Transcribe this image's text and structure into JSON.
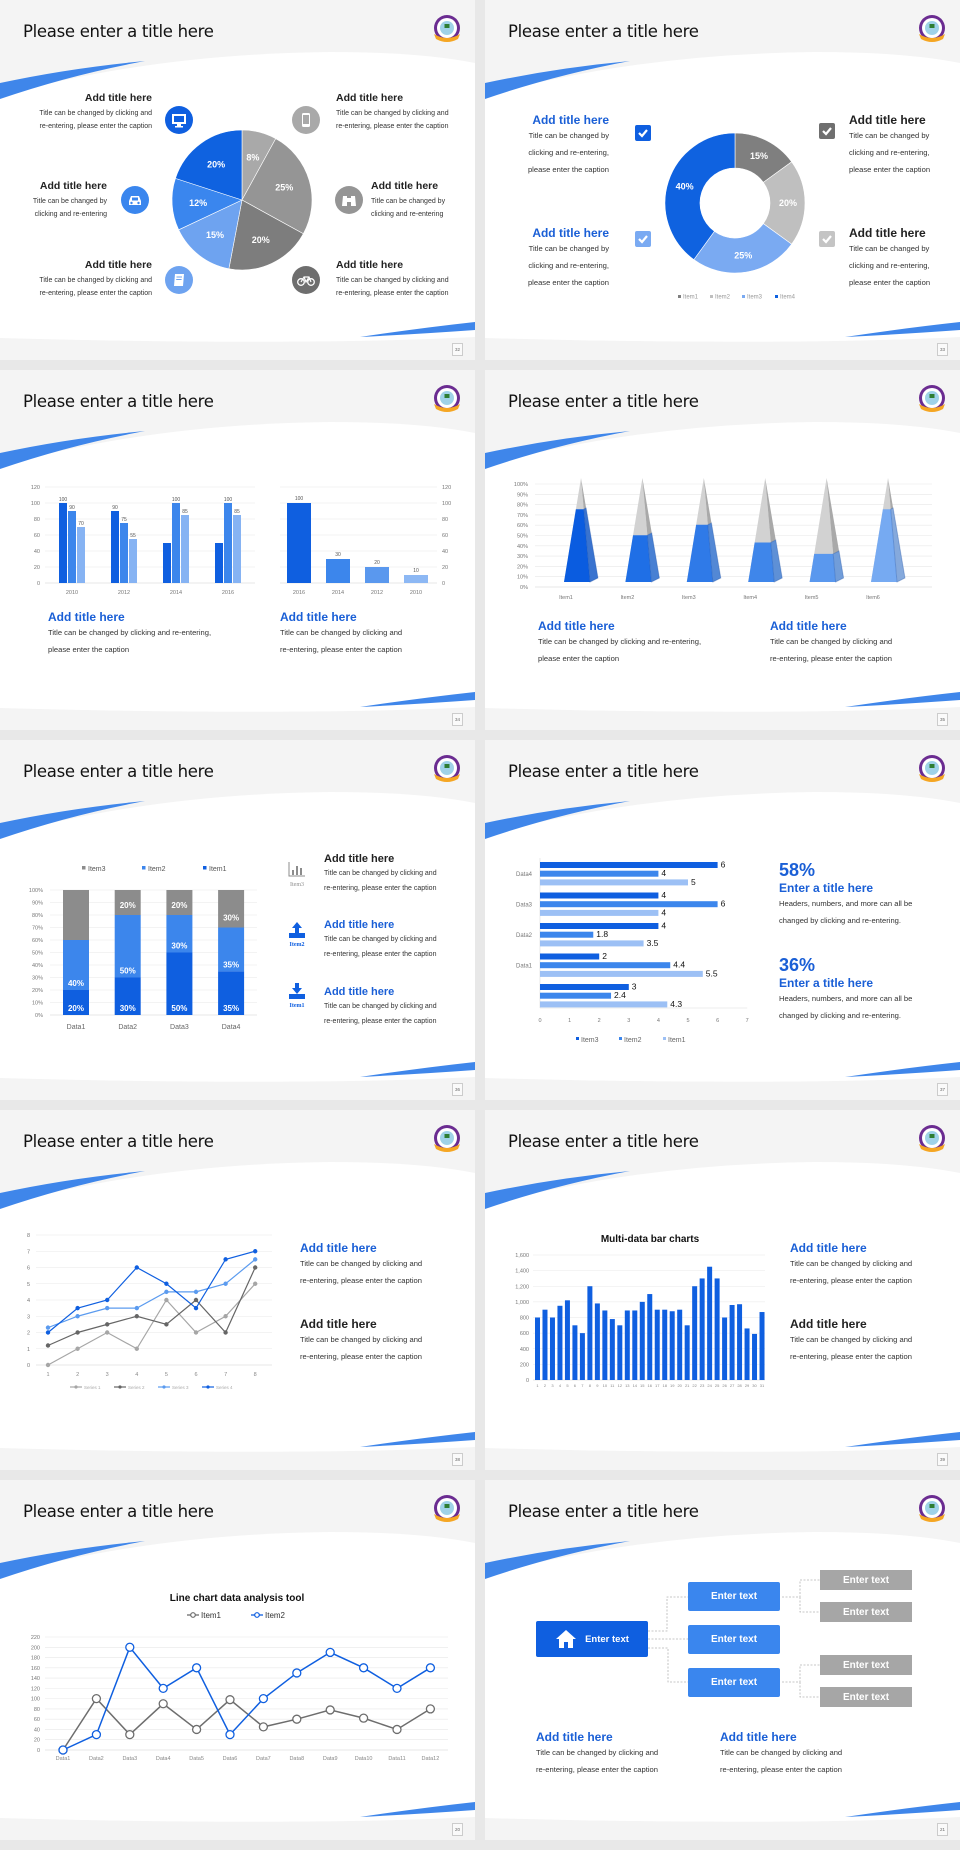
{
  "colors": {
    "blue_dark": "#0f5fe0",
    "blue_mid": "#3c86ec",
    "blue_light": "#7badf2",
    "gray_dark": "#7f7f7f",
    "gray_mid": "#a6a6a6",
    "gray_light": "#bfbfbf",
    "background": "#f4f4f4"
  },
  "slides": [
    {
      "title": "Please enter a title here",
      "page": "32",
      "blocks": [
        {
          "title": "Add title here",
          "lines": [
            "Title can be changed by clicking and",
            "re-entering, please enter the caption"
          ],
          "icon": "monitor-icon"
        },
        {
          "title": "Add title here",
          "lines": [
            "Title can be changed by",
            "clicking and re-entering"
          ],
          "icon": "car-icon"
        },
        {
          "title": "Add title here",
          "lines": [
            "Title can be changed by clicking and",
            "re-entering, please enter the caption"
          ],
          "icon": "book-icon"
        },
        {
          "title": "Add title here",
          "lines": [
            "Title can be changed by clicking and",
            "re-entering, please enter the caption"
          ],
          "icon": "phone-icon"
        },
        {
          "title": "Add title here",
          "lines": [
            "Title can be changed by",
            "clicking and re-entering"
          ],
          "icon": "binoculars-icon"
        },
        {
          "title": "Add title here",
          "lines": [
            "Title can be changed by clicking and",
            "re-entering, please enter the caption"
          ],
          "icon": "bicycle-icon"
        }
      ]
    },
    {
      "title": "Please enter a title here",
      "page": "33",
      "blocks": [
        {
          "title": "Add title here",
          "lines": [
            "Title can be changed by",
            "clicking and re-entering,",
            "please enter the caption"
          ]
        },
        {
          "title": "Add title here",
          "lines": [
            "Title can be changed by",
            "clicking and re-entering,",
            "please enter the caption"
          ]
        },
        {
          "title": "Add title here",
          "lines": [
            "Title can be changed by",
            "clicking and re-entering,",
            "please enter the caption"
          ]
        },
        {
          "title": "Add title here",
          "lines": [
            "Title can be changed by",
            "clicking and re-entering,",
            "please enter the caption"
          ]
        }
      ]
    },
    {
      "title": "Please enter a title here",
      "page": "34",
      "blocks": [
        {
          "title": "Add title here",
          "lines": [
            "Title can be changed by clicking and re-entering,",
            "please enter the caption"
          ]
        },
        {
          "title": "Add title here",
          "lines": [
            "Title can be changed by clicking and",
            "re-entering, please enter the caption"
          ]
        }
      ]
    },
    {
      "title": "Please enter a title here",
      "page": "35",
      "blocks": [
        {
          "title": "Add title here",
          "lines": [
            "Title can be changed by clicking and re-entering,",
            "please enter the caption"
          ]
        },
        {
          "title": "Add title here",
          "lines": [
            "Title can be changed by clicking and",
            "re-entering, please enter the caption"
          ]
        }
      ]
    },
    {
      "title": "Please enter a title here",
      "page": "36",
      "blocks": [
        {
          "title": "Add title here",
          "lines": [
            "Title can be changed by clicking and",
            "re-entering, please enter the caption"
          ],
          "icon_label": "Item3",
          "icon": "bar-chart-icon"
        },
        {
          "title": "Add title here",
          "lines": [
            "Title can be changed by clicking and",
            "re-entering, please enter the caption"
          ],
          "icon_label": "Item2",
          "icon": "upload-icon"
        },
        {
          "title": "Add title here",
          "lines": [
            "Title can be changed by clicking and",
            "re-entering, please enter the caption"
          ],
          "icon_label": "Item1",
          "icon": "download-icon"
        }
      ]
    },
    {
      "title": "Please enter a title here",
      "page": "37",
      "blocks": [
        {
          "number": "58%",
          "title": "Enter a title here",
          "lines": [
            "Headers, numbers, and more can all be",
            "changed by clicking and re-entering."
          ]
        },
        {
          "number": "36%",
          "title": "Enter a title here",
          "lines": [
            "Headers, numbers, and more can all be",
            "changed by clicking and re-entering."
          ]
        }
      ]
    },
    {
      "title": "Please enter a title here",
      "page": "38",
      "blocks": [
        {
          "title": "Add title here",
          "lines": [
            "Title can be changed by clicking and",
            "re-entering, please enter the caption"
          ]
        },
        {
          "title": "Add title here",
          "lines": [
            "Title can be changed by clicking and",
            "re-entering, please enter the caption"
          ]
        }
      ]
    },
    {
      "title": "Please enter a title here",
      "page": "39",
      "blocks": [
        {
          "title": "Add title here",
          "lines": [
            "Title can be changed by clicking and",
            "re-entering, please enter the caption"
          ]
        },
        {
          "title": "Add title here",
          "lines": [
            "Title can be changed by clicking and",
            "re-entering, please enter the caption"
          ]
        }
      ]
    },
    {
      "title": "Please enter a title here",
      "page": "20"
    },
    {
      "title": "Please enter a title here",
      "page": "21",
      "diagram": {
        "root": "Enter text",
        "root_icon": "home-icon",
        "middle": [
          "Enter text",
          "Enter text",
          "Enter text"
        ],
        "leaves": [
          "Enter text",
          "Enter text",
          "Enter text",
          "Enter text"
        ]
      },
      "blocks": [
        {
          "title": "Add title here",
          "lines": [
            "Title can be changed by clicking and",
            "re-entering, please enter the caption"
          ]
        },
        {
          "title": "Add title here",
          "lines": [
            "Title can be changed by clicking and",
            "re-entering, please enter the caption"
          ]
        }
      ]
    }
  ],
  "chart_data": [
    {
      "type": "pie",
      "values": [
        8,
        25,
        20,
        15,
        12,
        20
      ],
      "labels": [
        "8%",
        "25%",
        "20%",
        "15%",
        "12%",
        "20%"
      ],
      "colors": [
        "#a9a9a9",
        "#959595",
        "#7d7d7d",
        "#6ea3f0",
        "#3a86ee",
        "#0f62e0"
      ]
    },
    {
      "type": "pie",
      "donut": true,
      "categories": [
        "Item1",
        "Item2",
        "Item3",
        "Item4"
      ],
      "values": [
        15,
        20,
        25,
        40
      ],
      "labels": [
        "15%",
        "20%",
        "25%",
        "40%"
      ],
      "colors": [
        "#7f7f7f",
        "#bfbfbf",
        "#7aaaf2",
        "#0f62e0"
      ],
      "legend": "bottom"
    },
    {
      "type": "bar",
      "categories": [
        "2010",
        "2012",
        "2014",
        "2016"
      ],
      "series": [
        {
          "values": [
            100,
            90,
            50,
            50
          ],
          "labels": [
            "100",
            "90",
            "",
            ""
          ]
        },
        {
          "values": [
            90,
            75,
            100,
            100
          ],
          "labels": [
            "90",
            "75",
            "100",
            "100"
          ]
        },
        {
          "values": [
            70,
            55,
            85,
            85
          ],
          "labels": [
            "70",
            "55",
            "85",
            "85"
          ]
        }
      ],
      "ylim": [
        0,
        120
      ],
      "yticks": [
        "0",
        "20",
        "40",
        "60",
        "80",
        "100",
        "120"
      ],
      "colors": [
        "#0f5fe0",
        "#3c86ec",
        "#86b3f3"
      ],
      "grid": true
    },
    {
      "type": "bar",
      "categories": [
        "2016",
        "2014",
        "2012",
        "2010"
      ],
      "values": [
        100,
        30,
        20,
        10
      ],
      "labels": [
        "100",
        "30",
        "20",
        "10"
      ],
      "ylim": [
        0,
        120
      ],
      "yticks": [
        "0",
        "20",
        "40",
        "60",
        "80",
        "100",
        "120"
      ],
      "axis": "right",
      "colors": [
        "#0f5fe0",
        "#3c86ec",
        "#5a98ee",
        "#8db8f4"
      ],
      "grid": true
    },
    {
      "type": "bar",
      "style": "3d-pyramid",
      "categories": [
        "Item1",
        "Item2",
        "Item3",
        "Item4",
        "Item5",
        "Item6"
      ],
      "values": [
        70,
        45,
        55,
        38,
        27,
        70
      ],
      "ylim": [
        0,
        100
      ],
      "yticks": [
        "0%",
        "10%",
        "20%",
        "30%",
        "40%",
        "50%",
        "60%",
        "70%",
        "80%",
        "90%",
        "100%"
      ],
      "colors": [
        "#0a5ce0",
        "#1f6fe6",
        "#2f7ae8",
        "#3f86ea",
        "#5a98ee",
        "#76aaf2"
      ],
      "grid": true
    },
    {
      "type": "bar",
      "stacked": true,
      "categories": [
        "Data1",
        "Data2",
        "Data3",
        "Data4"
      ],
      "series": [
        {
          "name": "Item1",
          "values": [
            20,
            30,
            50,
            35
          ],
          "labels": [
            "20%",
            "30%",
            "50%",
            "35%"
          ]
        },
        {
          "name": "Item2",
          "values": [
            40,
            50,
            30,
            35
          ],
          "labels": [
            "40%",
            "50%",
            "30%",
            "35%"
          ]
        },
        {
          "name": "Item3",
          "values": [
            40,
            20,
            20,
            30
          ],
          "labels": [
            "",
            "20%",
            "20%",
            "30%"
          ]
        }
      ],
      "ylim": [
        0,
        100
      ],
      "yticks": [
        "0%",
        "10%",
        "20%",
        "30%",
        "40%",
        "50%",
        "60%",
        "70%",
        "80%",
        "90%",
        "100%"
      ],
      "colors": [
        "#0f5fe0",
        "#3c86ec",
        "#8c8c8c"
      ],
      "legend": "top",
      "grid": true
    },
    {
      "type": "bar",
      "orientation": "horizontal",
      "categories": [
        "Data4",
        "Data3",
        "Data2",
        "Data1",
        ""
      ],
      "series": [
        {
          "name": "Item3",
          "values": [
            6,
            4,
            4,
            2,
            3
          ],
          "labels": [
            "6",
            "4",
            "4",
            "2",
            "3"
          ]
        },
        {
          "name": "Item2",
          "values": [
            4,
            6,
            1.8,
            4.4,
            2.4
          ],
          "labels": [
            "4",
            "6",
            "1.8",
            "4.4",
            "2.4"
          ]
        },
        {
          "name": "Item1",
          "values": [
            5,
            4,
            3.5,
            5.5,
            4.3
          ],
          "labels": [
            "5",
            "4",
            "3.5",
            "5.5",
            "4.3"
          ]
        }
      ],
      "xlim": [
        0,
        7
      ],
      "xticks": [
        "0",
        "1",
        "2",
        "3",
        "4",
        "5",
        "6",
        "7"
      ],
      "colors": [
        "#0f5fe0",
        "#3c86ec",
        "#9cc0f5"
      ],
      "legend": "bottom"
    },
    {
      "type": "line",
      "x": [
        "1",
        "2",
        "3",
        "4",
        "5",
        "6",
        "7",
        "8"
      ],
      "series": [
        {
          "name": "Series 1",
          "values": [
            0,
            1,
            2,
            1,
            4,
            2,
            3,
            5
          ]
        },
        {
          "name": "Series 2",
          "values": [
            1.2,
            2,
            2.5,
            3,
            2.5,
            4,
            2,
            6
          ]
        },
        {
          "name": "Series 3",
          "values": [
            2.3,
            3,
            3.5,
            3.5,
            4.5,
            4.5,
            5,
            6.5
          ]
        },
        {
          "name": "Series 4",
          "values": [
            2,
            3.5,
            4,
            6,
            5,
            3.5,
            6.5,
            7
          ]
        }
      ],
      "ylim": [
        0,
        8
      ],
      "yticks": [
        "0",
        "1",
        "2",
        "3",
        "4",
        "5",
        "6",
        "7",
        "8"
      ],
      "colors": [
        "#a6a6a6",
        "#666666",
        "#5b9bef",
        "#0f5fe0"
      ],
      "legend": "bottom",
      "grid": true
    },
    {
      "type": "bar",
      "title": "Multi-data bar charts",
      "categories": [
        "1",
        "2",
        "3",
        "4",
        "5",
        "6",
        "7",
        "8",
        "9",
        "10",
        "11",
        "12",
        "13",
        "14",
        "15",
        "16",
        "17",
        "18",
        "19",
        "20",
        "21",
        "22",
        "23",
        "24",
        "25",
        "26",
        "27",
        "28",
        "29",
        "30",
        "31"
      ],
      "values": [
        800,
        900,
        800,
        950,
        1020,
        700,
        600,
        1200,
        980,
        890,
        780,
        700,
        890,
        890,
        1000,
        1100,
        900,
        900,
        880,
        900,
        700,
        1200,
        1300,
        1450,
        1300,
        800,
        960,
        970,
        660,
        590,
        870
      ],
      "ylim": [
        0,
        1600
      ],
      "yticks": [
        "0",
        "200",
        "400",
        "600",
        "800",
        "1,000",
        "1,200",
        "1,400",
        "1,600"
      ],
      "colors": [
        "#0f5fe0"
      ],
      "grid": true
    },
    {
      "type": "line",
      "title": "Line chart data analysis tool",
      "x": [
        "Data1",
        "Data2",
        "Data3",
        "Data4",
        "Data5",
        "Data6",
        "Data7",
        "Data8",
        "Data9",
        "Data10",
        "Data11",
        "Data12"
      ],
      "series": [
        {
          "name": "Item1",
          "values": [
            0,
            100,
            30,
            90,
            40,
            98,
            45,
            60,
            78,
            62,
            40,
            80
          ]
        },
        {
          "name": "Item2",
          "values": [
            0,
            30,
            200,
            120,
            160,
            30,
            100,
            150,
            190,
            160,
            120,
            160
          ]
        }
      ],
      "ylim": [
        0,
        220
      ],
      "yticks": [
        "0",
        "20",
        "40",
        "60",
        "80",
        "100",
        "120",
        "140",
        "160",
        "180",
        "200",
        "220"
      ],
      "colors": [
        "#6d6d6d",
        "#0f5fe0"
      ],
      "legend": "top",
      "grid": true
    }
  ]
}
